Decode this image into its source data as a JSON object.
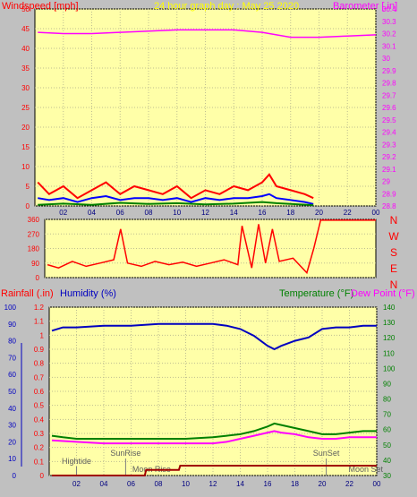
{
  "header": {
    "wind_title": "Windspeed [mph]",
    "graph_title": "24 hour graph day : May 25 2020",
    "baro_title": "Barometer [.in]"
  },
  "colors": {
    "background": "#c0c0c0",
    "plot_bg": "#ffffa8",
    "wind_red": "#ff0000",
    "wind_blue": "#0000ff",
    "wind_green": "#008000",
    "baro": "#ff00ff",
    "humidity": "#0000c0",
    "temperature": "#008000",
    "dewpoint": "#ff00ff",
    "rain": "#ff0000",
    "title_yellow": "#ffff00"
  },
  "chart_data": [
    {
      "id": "wind-baro",
      "type": "line",
      "x_ticks": [
        "02",
        "04",
        "06",
        "08",
        "10",
        "12",
        "14",
        "16",
        "18",
        "20",
        "22",
        "00"
      ],
      "y_left": {
        "ylim": [
          0,
          50
        ],
        "ticks": [
          "0",
          "5",
          "10",
          "15",
          "20",
          "25",
          "30",
          "35",
          "40",
          "45",
          "50"
        ]
      },
      "y_right": {
        "ylim": [
          28.8,
          30.4
        ],
        "ticks": [
          "28.8",
          "28.9",
          "29",
          "29.1",
          "29.2",
          "29.3",
          "29.4",
          "29.5",
          "29.6",
          "29.7",
          "29.8",
          "29.9",
          "30",
          "30.1",
          "30.2",
          "30.3",
          "30.4"
        ]
      },
      "series": [
        {
          "key": "wind_gust",
          "x": [
            0.2,
            1,
            2,
            3,
            4,
            5,
            6,
            7,
            8,
            9,
            10,
            11,
            12,
            13,
            14,
            15,
            16,
            16.5,
            17,
            18,
            19,
            19.6
          ],
          "values": [
            6,
            3,
            5,
            2,
            4,
            6,
            3,
            5,
            4,
            3,
            5,
            2,
            4,
            3,
            5,
            4,
            6,
            8,
            5,
            4,
            3,
            2
          ]
        },
        {
          "key": "wind_avg",
          "x": [
            0.2,
            1,
            2,
            3,
            4,
            5,
            6,
            7,
            8,
            9,
            10,
            11,
            12,
            13,
            14,
            15,
            16,
            16.5,
            17,
            18,
            19,
            19.6
          ],
          "values": [
            2,
            1.5,
            2,
            1,
            2,
            2.5,
            1.5,
            2,
            2,
            1.5,
            2,
            1,
            2,
            1.5,
            2,
            2,
            2.5,
            3,
            2,
            1.5,
            1,
            0.5
          ]
        },
        {
          "key": "wind_low",
          "x": [
            0.2,
            2,
            4,
            6,
            8,
            10,
            12,
            14,
            16,
            17,
            18,
            19.6
          ],
          "values": [
            0.3,
            0.6,
            0.3,
            0.8,
            0.5,
            0.7,
            0.4,
            0.6,
            1,
            0.7,
            0.5,
            0.2
          ]
        },
        {
          "key": "barometer",
          "x": [
            0.2,
            2,
            4,
            6,
            8,
            10,
            12,
            14,
            16,
            18,
            20,
            22,
            24
          ],
          "values": [
            30.21,
            30.2,
            30.2,
            30.21,
            30.22,
            30.23,
            30.23,
            30.23,
            30.21,
            30.17,
            30.17,
            30.18,
            30.19
          ]
        }
      ]
    },
    {
      "id": "wind-direction",
      "type": "line",
      "y_ticks": [
        "0",
        "90",
        "180",
        "270",
        "360"
      ],
      "ylim": [
        0,
        360
      ],
      "compass": [
        "N",
        "W",
        "S",
        "E",
        "N"
      ],
      "series": [
        {
          "key": "direction",
          "x": [
            0.2,
            1,
            2,
            3,
            4,
            5,
            5.5,
            6,
            7,
            8,
            9,
            10,
            11,
            12,
            13,
            14,
            14.3,
            15,
            15.5,
            16,
            16.5,
            17,
            18,
            19,
            19.5,
            20,
            24
          ],
          "values": [
            80,
            60,
            100,
            70,
            90,
            110,
            300,
            90,
            70,
            100,
            80,
            95,
            70,
            90,
            110,
            80,
            320,
            60,
            330,
            90,
            300,
            100,
            120,
            30,
            180,
            355,
            355
          ]
        }
      ]
    },
    {
      "id": "hum-temp-dew-rain",
      "type": "line",
      "labels": {
        "rainfall": "Rainfall (.in)",
        "humidity": "Humidity (%)",
        "temperature": "Temperature (°F)",
        "dewpoint": "Dew Point (°F)"
      },
      "y_rain": {
        "ylim": [
          0,
          1.2
        ],
        "ticks": [
          "0",
          "0.1",
          "0.2",
          "0.3",
          "0.4",
          "0.5",
          "0.6",
          "0.7",
          "0.8",
          "0.9",
          "1",
          "1.1",
          "1.2"
        ]
      },
      "y_humidity": {
        "ylim": [
          0,
          100
        ],
        "ticks": [
          "0",
          "10",
          "20",
          "30",
          "40",
          "50",
          "60",
          "70",
          "80",
          "90",
          "100"
        ]
      },
      "y_temp": {
        "ylim": [
          30,
          140
        ],
        "ticks": [
          "30",
          "40",
          "50",
          "60",
          "70",
          "80",
          "90",
          "100",
          "110",
          "120",
          "130",
          "140"
        ]
      },
      "x_ticks": [
        "02",
        "04",
        "06",
        "08",
        "10",
        "12",
        "14",
        "16",
        "18",
        "20",
        "22",
        "00"
      ],
      "events": [
        {
          "label": "Hightide",
          "x": 2
        },
        {
          "label": "SunRise",
          "x": 5.6
        },
        {
          "label": "Moon Rise",
          "x": 7.5
        },
        {
          "label": "SunSet",
          "x": 20.3
        },
        {
          "label": "Moon Set",
          "x": 23.2
        }
      ],
      "series": [
        {
          "key": "humidity",
          "x": [
            0.2,
            1,
            2,
            4,
            6,
            8,
            10,
            12,
            13,
            14,
            15,
            16,
            16.5,
            17,
            18,
            19,
            20,
            21,
            22,
            23,
            24
          ],
          "values": [
            86,
            88,
            88,
            89,
            89,
            90,
            90,
            90,
            89,
            87,
            83,
            77,
            75,
            77,
            80,
            82,
            87,
            88,
            88,
            89,
            89
          ]
        },
        {
          "key": "temperature",
          "x": [
            0.2,
            1,
            2,
            4,
            6,
            8,
            10,
            12,
            13,
            14,
            15,
            16,
            16.5,
            17,
            18,
            19,
            19.5,
            20,
            21,
            22,
            23,
            24
          ],
          "values": [
            56,
            55,
            54,
            54,
            54,
            54,
            54,
            55,
            56,
            57,
            59,
            62,
            64,
            63,
            61,
            59,
            58,
            57,
            57,
            58,
            59,
            59
          ]
        },
        {
          "key": "dewpoint",
          "x": [
            0.2,
            2,
            4,
            6,
            8,
            10,
            12,
            13,
            14,
            15,
            16,
            16.5,
            17,
            18,
            19,
            20,
            21,
            22,
            23,
            24
          ],
          "values": [
            53,
            52,
            51,
            51,
            51,
            51,
            51,
            52,
            54,
            56,
            58,
            59,
            58,
            57,
            55,
            54,
            54,
            55,
            55,
            55
          ]
        },
        {
          "key": "rainfall",
          "x": [
            0.2,
            7,
            7.1,
            9.5,
            9.6,
            24
          ],
          "values": [
            0,
            0,
            0.04,
            0.04,
            0.07,
            0.07
          ]
        }
      ]
    }
  ]
}
